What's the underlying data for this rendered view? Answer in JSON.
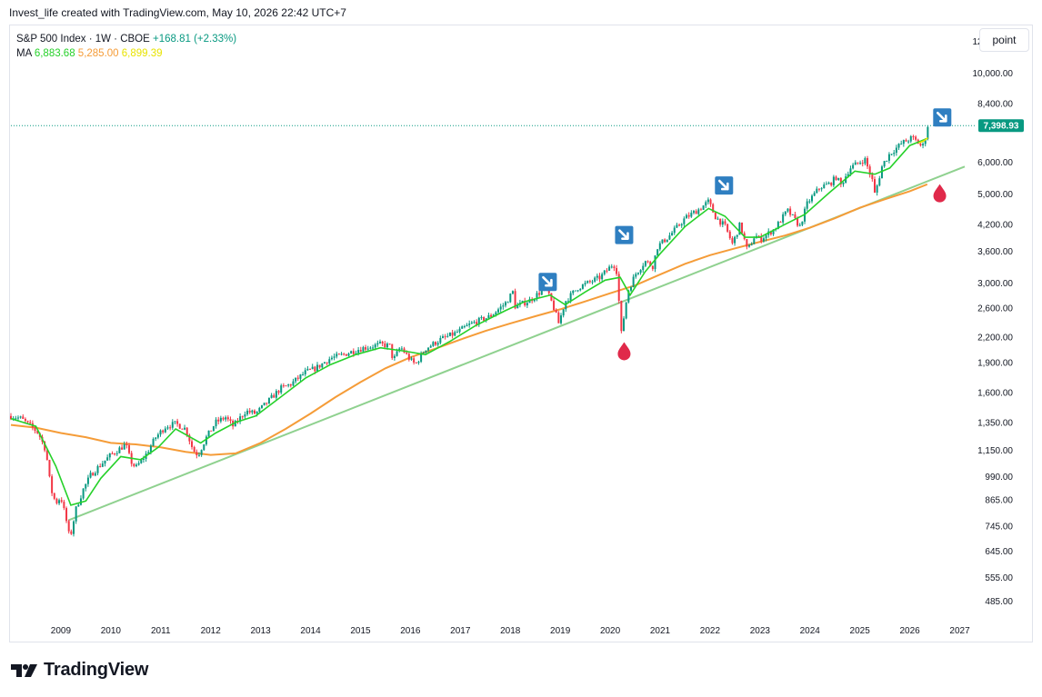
{
  "caption": "Invest_life created with TradingView.com, May 10, 2026 22:42 UTC+7",
  "legend": {
    "symbol": "S&P 500 Index · 1W · CBOE",
    "change": "+168.81 (+2.33%)",
    "ma_label": "MA",
    "ma_values": [
      "6,883.68",
      "5,285.00",
      "6,899.39"
    ]
  },
  "scale_button": "point",
  "logo_text": "TradingView",
  "colors": {
    "up": "#089981",
    "down": "#f23645",
    "ma_fast": "#26d12a",
    "ma_slow": "#f59c38",
    "ma_mid": "#e8e300",
    "trendline": "#8fd18f",
    "price_label": "#089981",
    "arrow_badge": "#2f7fc1",
    "drop": "#e0294a"
  },
  "icons": {
    "arrow_badge": "arrow-down-right-icon",
    "drop": "drop-icon",
    "logo": "tradingview-logo-icon"
  },
  "chart_data": {
    "type": "line",
    "title": "S&P 500 Index · 1W · CBOE",
    "y_scale": "log",
    "ylim": [
      440,
      13000
    ],
    "xlim": [
      2008.0,
      2027.3
    ],
    "y_ticks": [
      {
        "value": 12000,
        "label": "12,000.00"
      },
      {
        "value": 10000,
        "label": "10,000.00"
      },
      {
        "value": 8400,
        "label": "8,400.00"
      },
      {
        "value": 6000,
        "label": "6,000.00"
      },
      {
        "value": 5000,
        "label": "5,000.00"
      },
      {
        "value": 4200,
        "label": "4,200.00"
      },
      {
        "value": 3600,
        "label": "3,600.00"
      },
      {
        "value": 3000,
        "label": "3,000.00"
      },
      {
        "value": 2600,
        "label": "2,600.00"
      },
      {
        "value": 2200,
        "label": "2,200.00"
      },
      {
        "value": 1900,
        "label": "1,900.00"
      },
      {
        "value": 1600,
        "label": "1,600.00"
      },
      {
        "value": 1350,
        "label": "1,350.00"
      },
      {
        "value": 1150,
        "label": "1,150.00"
      },
      {
        "value": 990,
        "label": "990.00"
      },
      {
        "value": 865,
        "label": "865.00"
      },
      {
        "value": 745,
        "label": "745.00"
      },
      {
        "value": 645,
        "label": "645.00"
      },
      {
        "value": 555,
        "label": "555.00"
      },
      {
        "value": 485,
        "label": "485.00"
      }
    ],
    "x_ticks": [
      "2009",
      "2010",
      "2011",
      "2012",
      "2013",
      "2014",
      "2015",
      "2016",
      "2017",
      "2018",
      "2019",
      "2020",
      "2021",
      "2022",
      "2023",
      "2024",
      "2025",
      "2026",
      "2027"
    ],
    "last_price": {
      "value": 7398.93,
      "label": "7,398.93"
    },
    "price_series": [
      [
        2008.0,
        1400
      ],
      [
        2008.2,
        1380
      ],
      [
        2008.4,
        1320
      ],
      [
        2008.55,
        1270
      ],
      [
        2008.7,
        1150
      ],
      [
        2008.8,
        920
      ],
      [
        2008.9,
        850
      ],
      [
        2009.0,
        880
      ],
      [
        2009.1,
        780
      ],
      [
        2009.18,
        690
      ],
      [
        2009.3,
        820
      ],
      [
        2009.45,
        920
      ],
      [
        2009.6,
        1000
      ],
      [
        2009.8,
        1060
      ],
      [
        2010.0,
        1120
      ],
      [
        2010.3,
        1190
      ],
      [
        2010.4,
        1080
      ],
      [
        2010.5,
        1040
      ],
      [
        2010.7,
        1120
      ],
      [
        2010.9,
        1240
      ],
      [
        2011.1,
        1320
      ],
      [
        2011.3,
        1340
      ],
      [
        2011.5,
        1300
      ],
      [
        2011.65,
        1150
      ],
      [
        2011.75,
        1120
      ],
      [
        2011.9,
        1230
      ],
      [
        2012.1,
        1350
      ],
      [
        2012.3,
        1390
      ],
      [
        2012.45,
        1320
      ],
      [
        2012.7,
        1440
      ],
      [
        2012.9,
        1420
      ],
      [
        2013.1,
        1500
      ],
      [
        2013.4,
        1640
      ],
      [
        2013.6,
        1680
      ],
      [
        2013.9,
        1800
      ],
      [
        2014.1,
        1840
      ],
      [
        2014.4,
        1950
      ],
      [
        2014.6,
        1980
      ],
      [
        2014.8,
        2020
      ],
      [
        2015.0,
        2060
      ],
      [
        2015.4,
        2110
      ],
      [
        2015.6,
        2090
      ],
      [
        2015.65,
        1920
      ],
      [
        2015.8,
        2080
      ],
      [
        2016.0,
        1930
      ],
      [
        2016.1,
        1880
      ],
      [
        2016.3,
        2060
      ],
      [
        2016.6,
        2170
      ],
      [
        2016.9,
        2250
      ],
      [
        2017.2,
        2370
      ],
      [
        2017.6,
        2480
      ],
      [
        2017.9,
        2670
      ],
      [
        2018.05,
        2850
      ],
      [
        2018.1,
        2620
      ],
      [
        2018.4,
        2720
      ],
      [
        2018.7,
        2920
      ],
      [
        2018.85,
        2650
      ],
      [
        2018.97,
        2380
      ],
      [
        2019.1,
        2700
      ],
      [
        2019.35,
        2920
      ],
      [
        2019.5,
        2980
      ],
      [
        2019.8,
        3100
      ],
      [
        2020.05,
        3340
      ],
      [
        2020.12,
        3300
      ],
      [
        2020.2,
        2480
      ],
      [
        2020.22,
        2230
      ],
      [
        2020.35,
        2850
      ],
      [
        2020.5,
        3150
      ],
      [
        2020.7,
        3400
      ],
      [
        2020.85,
        3300
      ],
      [
        2020.95,
        3700
      ],
      [
        2021.2,
        3950
      ],
      [
        2021.5,
        4350
      ],
      [
        2021.8,
        4600
      ],
      [
        2021.97,
        4790
      ],
      [
        2022.1,
        4400
      ],
      [
        2022.3,
        4150
      ],
      [
        2022.45,
        3750
      ],
      [
        2022.6,
        4200
      ],
      [
        2022.75,
        3600
      ],
      [
        2022.9,
        3950
      ],
      [
        2023.0,
        3850
      ],
      [
        2023.3,
        4100
      ],
      [
        2023.55,
        4550
      ],
      [
        2023.8,
        4150
      ],
      [
        2023.95,
        4750
      ],
      [
        2024.2,
        5200
      ],
      [
        2024.4,
        5300
      ],
      [
        2024.55,
        5550
      ],
      [
        2024.6,
        5200
      ],
      [
        2024.8,
        5800
      ],
      [
        2024.95,
        5950
      ],
      [
        2025.1,
        6100
      ],
      [
        2025.25,
        5400
      ],
      [
        2025.3,
        4980
      ],
      [
        2025.45,
        5900
      ],
      [
        2025.6,
        6300
      ],
      [
        2025.85,
        6700
      ],
      [
        2026.05,
        6900
      ],
      [
        2026.2,
        6650
      ],
      [
        2026.25,
        6500
      ],
      [
        2026.32,
        7000
      ],
      [
        2026.36,
        7398.93
      ]
    ],
    "ma_slow_series": [
      [
        2008.0,
        1330
      ],
      [
        2008.5,
        1310
      ],
      [
        2009.0,
        1270
      ],
      [
        2009.5,
        1240
      ],
      [
        2010.0,
        1200
      ],
      [
        2010.5,
        1190
      ],
      [
        2011.0,
        1170
      ],
      [
        2011.5,
        1140
      ],
      [
        2012.0,
        1120
      ],
      [
        2012.5,
        1130
      ],
      [
        2013.0,
        1200
      ],
      [
        2013.5,
        1300
      ],
      [
        2014.0,
        1420
      ],
      [
        2014.5,
        1560
      ],
      [
        2015.0,
        1700
      ],
      [
        2015.5,
        1840
      ],
      [
        2016.0,
        1960
      ],
      [
        2016.5,
        2060
      ],
      [
        2017.0,
        2170
      ],
      [
        2017.5,
        2280
      ],
      [
        2018.0,
        2380
      ],
      [
        2018.5,
        2480
      ],
      [
        2019.0,
        2580
      ],
      [
        2019.5,
        2700
      ],
      [
        2020.0,
        2830
      ],
      [
        2020.5,
        2960
      ],
      [
        2021.0,
        3150
      ],
      [
        2021.5,
        3350
      ],
      [
        2022.0,
        3520
      ],
      [
        2022.5,
        3660
      ],
      [
        2023.0,
        3800
      ],
      [
        2023.5,
        3940
      ],
      [
        2024.0,
        4120
      ],
      [
        2024.5,
        4350
      ],
      [
        2025.0,
        4620
      ],
      [
        2025.5,
        4850
      ],
      [
        2026.0,
        5080
      ],
      [
        2026.35,
        5285
      ]
    ],
    "ma_fast_series": [
      [
        2008.0,
        1380
      ],
      [
        2008.5,
        1320
      ],
      [
        2008.9,
        1050
      ],
      [
        2009.2,
        840
      ],
      [
        2009.5,
        860
      ],
      [
        2009.8,
        980
      ],
      [
        2010.2,
        1110
      ],
      [
        2010.6,
        1090
      ],
      [
        2010.95,
        1170
      ],
      [
        2011.3,
        1300
      ],
      [
        2011.8,
        1200
      ],
      [
        2012.1,
        1270
      ],
      [
        2012.5,
        1350
      ],
      [
        2012.9,
        1400
      ],
      [
        2013.4,
        1560
      ],
      [
        2013.9,
        1740
      ],
      [
        2014.4,
        1880
      ],
      [
        2014.9,
        1990
      ],
      [
        2015.4,
        2070
      ],
      [
        2015.9,
        2030
      ],
      [
        2016.3,
        1990
      ],
      [
        2016.8,
        2150
      ],
      [
        2017.3,
        2350
      ],
      [
        2017.9,
        2560
      ],
      [
        2018.3,
        2700
      ],
      [
        2018.8,
        2800
      ],
      [
        2019.1,
        2650
      ],
      [
        2019.5,
        2850
      ],
      [
        2019.9,
        3050
      ],
      [
        2020.2,
        3100
      ],
      [
        2020.4,
        2800
      ],
      [
        2020.7,
        3200
      ],
      [
        2021.0,
        3550
      ],
      [
        2021.5,
        4150
      ],
      [
        2021.97,
        4600
      ],
      [
        2022.3,
        4400
      ],
      [
        2022.7,
        3900
      ],
      [
        2023.0,
        3900
      ],
      [
        2023.5,
        4200
      ],
      [
        2023.9,
        4450
      ],
      [
        2024.4,
        5050
      ],
      [
        2024.9,
        5700
      ],
      [
        2025.3,
        5600
      ],
      [
        2025.6,
        5800
      ],
      [
        2026.0,
        6600
      ],
      [
        2026.36,
        6883.68
      ]
    ],
    "ma_mid_series": [
      [
        2026.18,
        6700
      ],
      [
        2026.28,
        6780
      ],
      [
        2026.36,
        6899.39
      ]
    ],
    "trendline": [
      [
        2009.15,
        770
      ],
      [
        2027.1,
        5850
      ]
    ],
    "markers": [
      {
        "type": "arrow",
        "x": 2018.75,
        "y": 3020
      },
      {
        "type": "arrow",
        "x": 2020.28,
        "y": 3950
      },
      {
        "type": "arrow",
        "x": 2022.28,
        "y": 5250
      },
      {
        "type": "arrow",
        "x": 2026.65,
        "y": 7750
      },
      {
        "type": "drop",
        "x": 2020.28,
        "y": 2030
      },
      {
        "type": "drop",
        "x": 2026.6,
        "y": 5020
      }
    ]
  }
}
